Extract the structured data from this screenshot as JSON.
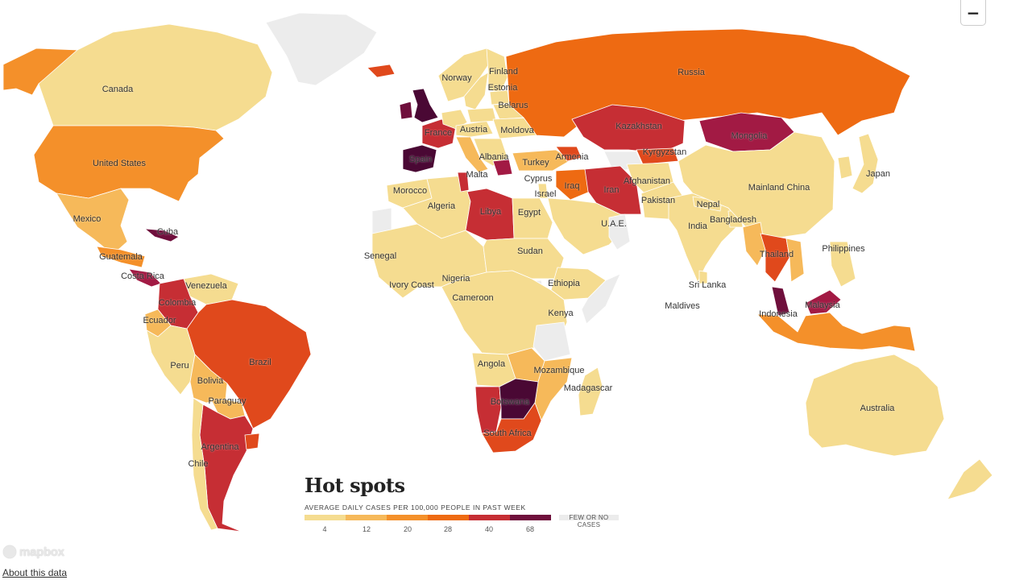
{
  "legend": {
    "title": "Hot spots",
    "subtitle": "AVERAGE DAILY CASES PER 100,000 PEOPLE IN PAST WEEK",
    "ticks": [
      "4",
      "12",
      "20",
      "28",
      "40",
      "68"
    ],
    "few_label_1": "FEW OR NO",
    "few_label_2": "CASES"
  },
  "colors": {
    "c1": "#f5dc90",
    "c2": "#f6b95a",
    "c3": "#f4902a",
    "c4": "#ee6a12",
    "c5": "#e0491c",
    "c6": "#c62e34",
    "c7": "#a21a44",
    "c8": "#6f0f3c",
    "c9": "#4a0834",
    "none": "#ececec"
  },
  "controls": {
    "zoom_out": "−"
  },
  "attribution": {
    "mapbox": "mapbox",
    "about": "About this data"
  },
  "labels": {
    "canada": "Canada",
    "united_states": "United States",
    "mexico": "Mexico",
    "guatemala": "Guatemala",
    "costa_rica": "Costa Rica",
    "cuba": "Cuba",
    "venezuela": "Venezuela",
    "colombia": "Colombia",
    "ecuador": "Ecuador",
    "peru": "Peru",
    "brazil": "Brazil",
    "bolivia": "Bolivia",
    "paraguay": "Paraguay",
    "argentina": "Argentina",
    "chile": "Chile",
    "norway": "Norway",
    "finland": "Finland",
    "estonia": "Estonia",
    "belarus": "Belarus",
    "france": "France",
    "austria": "Austria",
    "moldova": "Moldova",
    "spain": "Spain",
    "albania": "Albania",
    "malta": "Malta",
    "turkey": "Turkey",
    "armenia": "Armenia",
    "cyprus": "Cyprus",
    "israel": "Israel",
    "iraq": "Iraq",
    "iran": "Iran",
    "russia": "Russia",
    "kazakhstan": "Kazakhstan",
    "kyrgyzstan": "Kyrgyzstan",
    "mongolia": "Mongolia",
    "afghanistan": "Afghanistan",
    "pakistan": "Pakistan",
    "nepal": "Nepal",
    "india": "India",
    "bangladesh": "Bangladesh",
    "mainland_china": "Mainland China",
    "japan": "Japan",
    "thailand": "Thailand",
    "philippines": "Philippines",
    "sri_lanka": "Sri Lanka",
    "maldives": "Maldives",
    "malaysia": "Malaysia",
    "indonesia": "Indonesia",
    "australia": "Australia",
    "morocco": "Morocco",
    "algeria": "Algeria",
    "libya": "Libya",
    "egypt": "Egypt",
    "uae": "U.A.E.",
    "senegal": "Senegal",
    "ivory_coast": "Ivory Coast",
    "nigeria": "Nigeria",
    "cameroon": "Cameroon",
    "sudan": "Sudan",
    "ethiopia": "Ethiopia",
    "kenya": "Kenya",
    "angola": "Angola",
    "mozambique": "Mozambique",
    "madagascar": "Madagascar",
    "botswana": "Botswana",
    "south_africa": "South Africa"
  }
}
